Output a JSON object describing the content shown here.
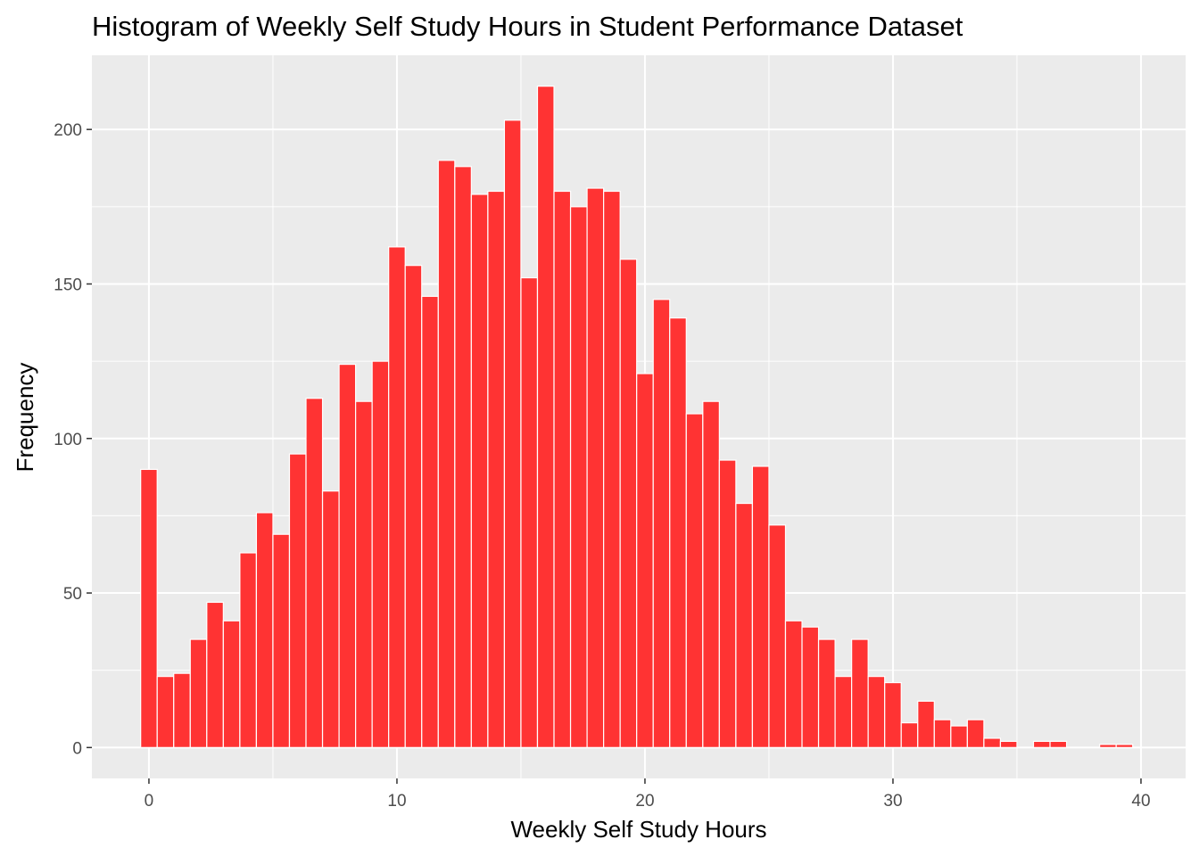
{
  "chart_data": {
    "type": "bar",
    "title": "Histogram of Weekly Self Study Hours in Student Performance Dataset",
    "xlabel": "Weekly Self Study Hours",
    "ylabel": "Frequency",
    "xlim": [
      -2.3,
      41.8
    ],
    "ylim": [
      -10,
      224
    ],
    "x_ticks": [
      0,
      10,
      20,
      30,
      40
    ],
    "y_ticks": [
      0,
      50,
      100,
      150,
      200
    ],
    "bin_width": 0.666667,
    "x": [
      0.0,
      0.6667,
      1.3333,
      2.0,
      2.6667,
      3.3333,
      4.0,
      4.6667,
      5.3333,
      6.0,
      6.6667,
      7.3333,
      8.0,
      8.6667,
      9.3333,
      10.0,
      10.6667,
      11.3333,
      12.0,
      12.6667,
      13.3333,
      14.0,
      14.6667,
      15.3333,
      16.0,
      16.6667,
      17.3333,
      18.0,
      18.6667,
      19.3333,
      20.0,
      20.6667,
      21.3333,
      22.0,
      22.6667,
      23.3333,
      24.0,
      24.6667,
      25.3333,
      26.0,
      26.6667,
      27.3333,
      28.0,
      28.6667,
      29.3333,
      30.0,
      30.6667,
      31.3333,
      32.0,
      32.6667,
      33.3333,
      34.0,
      34.6667,
      35.3333,
      36.0,
      36.6667,
      37.3333,
      38.0,
      38.6667,
      39.3333
    ],
    "values": [
      90,
      23,
      24,
      35,
      47,
      41,
      63,
      76,
      69,
      95,
      113,
      83,
      124,
      112,
      125,
      162,
      156,
      146,
      190,
      188,
      179,
      180,
      203,
      152,
      214,
      180,
      175,
      181,
      180,
      158,
      121,
      145,
      139,
      108,
      112,
      93,
      79,
      91,
      72,
      41,
      39,
      35,
      23,
      35,
      23,
      21,
      8,
      15,
      9,
      7,
      9,
      3,
      2,
      0,
      2,
      2,
      0,
      0,
      1,
      1
    ],
    "bar_color": "#ff3333",
    "bar_outline": "#ffffff",
    "panel_background": "#ebebeb",
    "grid": true,
    "legend": "none"
  }
}
